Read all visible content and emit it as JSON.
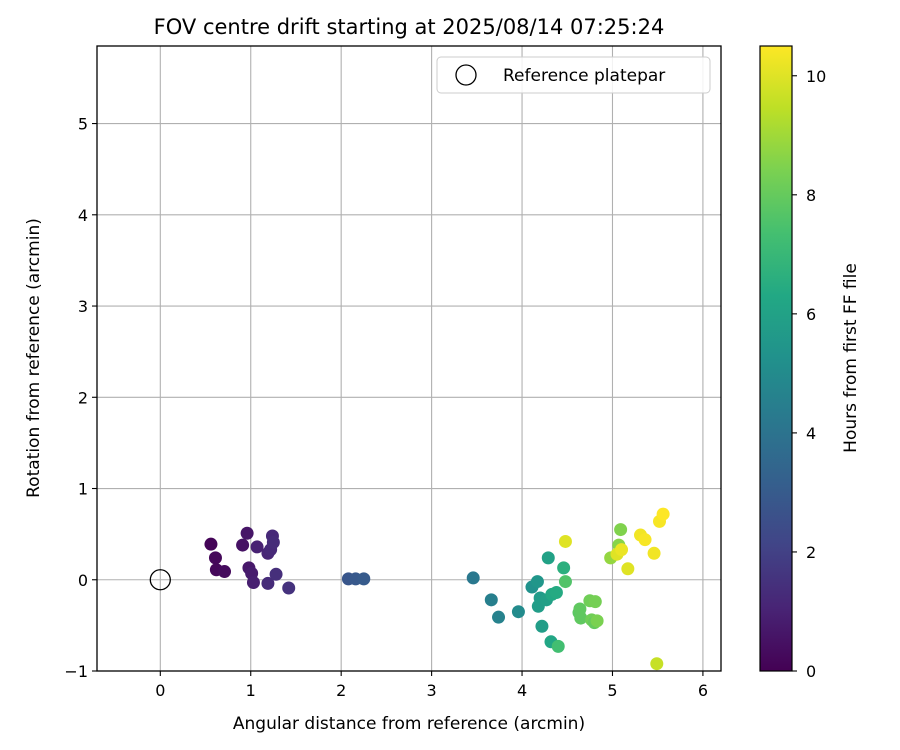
{
  "chart_data": {
    "type": "scatter",
    "title": "FOV centre drift starting at 2025/08/14 07:25:24",
    "xlabel": "Angular distance from reference (arcmin)",
    "ylabel": "Rotation from reference (arcmin)",
    "xlim": [
      -0.7,
      6.2
    ],
    "ylim": [
      -1.0,
      5.85
    ],
    "xticks": [
      "0",
      "1",
      "2",
      "3",
      "4",
      "5",
      "6"
    ],
    "yticks": [
      "−1",
      "0",
      "1",
      "2",
      "3",
      "4",
      "5"
    ],
    "grid": true,
    "legend": {
      "position": "top-right",
      "entries": [
        "Reference platepar"
      ]
    },
    "colorbar": {
      "label": "Hours from first FF file",
      "range": [
        0,
        10.5
      ],
      "colormap": "viridis",
      "ticks": [
        "0",
        "2",
        "4",
        "6",
        "8",
        "10"
      ]
    },
    "reference_point": {
      "x": 0,
      "y": 0
    },
    "series": [
      {
        "points": [
          {
            "x": 0.56,
            "y": 0.39,
            "c": 0.1
          },
          {
            "x": 0.61,
            "y": 0.24,
            "c": 0.2
          },
          {
            "x": 0.62,
            "y": 0.11,
            "c": 0.2
          },
          {
            "x": 0.71,
            "y": 0.09,
            "c": 0.3
          },
          {
            "x": 0.91,
            "y": 0.38,
            "c": 0.5
          },
          {
            "x": 0.96,
            "y": 0.51,
            "c": 0.6
          },
          {
            "x": 0.98,
            "y": 0.13,
            "c": 0.7
          },
          {
            "x": 1.01,
            "y": 0.07,
            "c": 0.8
          },
          {
            "x": 1.03,
            "y": -0.03,
            "c": 0.9
          },
          {
            "x": 1.07,
            "y": 0.36,
            "c": 1.0
          },
          {
            "x": 1.19,
            "y": 0.29,
            "c": 1.1
          },
          {
            "x": 1.22,
            "y": 0.33,
            "c": 1.2
          },
          {
            "x": 1.24,
            "y": 0.48,
            "c": 1.2
          },
          {
            "x": 1.25,
            "y": 0.41,
            "c": 1.3
          },
          {
            "x": 1.19,
            "y": -0.04,
            "c": 1.3
          },
          {
            "x": 1.28,
            "y": 0.06,
            "c": 1.4
          },
          {
            "x": 1.42,
            "y": -0.09,
            "c": 1.5
          },
          {
            "x": 2.08,
            "y": 0.01,
            "c": 2.8
          },
          {
            "x": 2.16,
            "y": 0.01,
            "c": 2.9
          },
          {
            "x": 2.25,
            "y": 0.01,
            "c": 3.0
          },
          {
            "x": 3.46,
            "y": 0.02,
            "c": 4.2
          },
          {
            "x": 3.66,
            "y": -0.22,
            "c": 4.5
          },
          {
            "x": 3.74,
            "y": -0.41,
            "c": 4.6
          },
          {
            "x": 3.96,
            "y": -0.35,
            "c": 5.0
          },
          {
            "x": 4.11,
            "y": -0.08,
            "c": 5.3
          },
          {
            "x": 4.17,
            "y": -0.02,
            "c": 5.5
          },
          {
            "x": 4.2,
            "y": -0.2,
            "c": 5.7
          },
          {
            "x": 4.18,
            "y": -0.29,
            "c": 5.8
          },
          {
            "x": 4.22,
            "y": -0.51,
            "c": 5.8
          },
          {
            "x": 4.27,
            "y": -0.22,
            "c": 5.9
          },
          {
            "x": 4.29,
            "y": 0.24,
            "c": 6.0
          },
          {
            "x": 4.32,
            "y": -0.68,
            "c": 6.2
          },
          {
            "x": 4.33,
            "y": -0.16,
            "c": 6.3
          },
          {
            "x": 4.38,
            "y": -0.14,
            "c": 6.4
          },
          {
            "x": 4.46,
            "y": 0.13,
            "c": 6.6
          },
          {
            "x": 4.4,
            "y": -0.73,
            "c": 7.3
          },
          {
            "x": 4.48,
            "y": -0.02,
            "c": 7.6
          },
          {
            "x": 4.63,
            "y": -0.36,
            "c": 7.8
          },
          {
            "x": 4.64,
            "y": -0.32,
            "c": 7.9
          },
          {
            "x": 4.65,
            "y": -0.42,
            "c": 7.9
          },
          {
            "x": 4.75,
            "y": -0.23,
            "c": 8.2
          },
          {
            "x": 4.77,
            "y": -0.44,
            "c": 8.2
          },
          {
            "x": 4.8,
            "y": -0.47,
            "c": 8.0
          },
          {
            "x": 4.81,
            "y": -0.24,
            "c": 8.3
          },
          {
            "x": 4.83,
            "y": -0.45,
            "c": 8.4
          },
          {
            "x": 4.98,
            "y": 0.24,
            "c": 8.8
          },
          {
            "x": 5.07,
            "y": 0.38,
            "c": 8.6
          },
          {
            "x": 5.09,
            "y": 0.55,
            "c": 8.5
          },
          {
            "x": 5.05,
            "y": 0.28,
            "c": 10.0
          },
          {
            "x": 5.1,
            "y": 0.33,
            "c": 10.2
          },
          {
            "x": 5.17,
            "y": 0.12,
            "c": 10.0
          },
          {
            "x": 5.31,
            "y": 0.49,
            "c": 10.3
          },
          {
            "x": 5.36,
            "y": 0.44,
            "c": 10.4
          },
          {
            "x": 5.46,
            "y": 0.29,
            "c": 10.3
          },
          {
            "x": 5.52,
            "y": 0.64,
            "c": 10.4
          },
          {
            "x": 5.56,
            "y": 0.72,
            "c": 10.5
          },
          {
            "x": 4.48,
            "y": 0.42,
            "c": 10.0
          },
          {
            "x": 5.49,
            "y": -0.92,
            "c": 9.6
          }
        ]
      }
    ]
  }
}
